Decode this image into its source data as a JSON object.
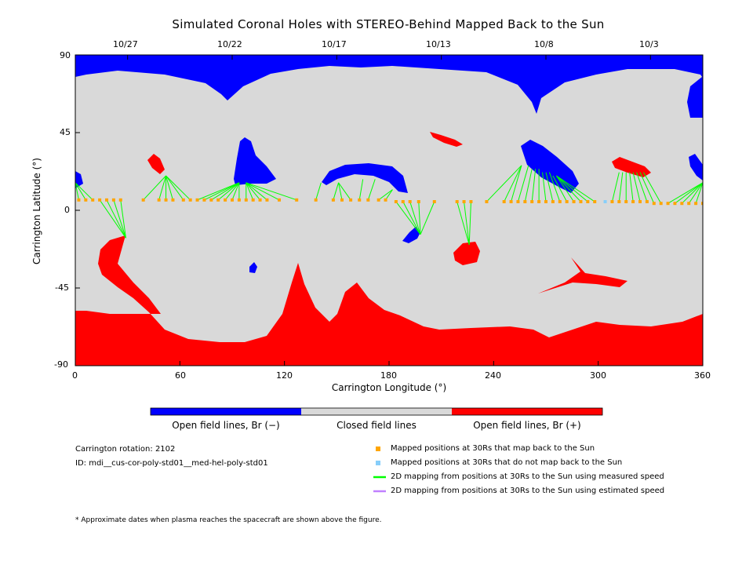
{
  "chart_data": {
    "type": "heatmap",
    "title": "Simulated Coronal Holes with STEREO-Behind Mapped Back to the Sun",
    "xlabel": "Carrington Longitude (°)",
    "ylabel": "Carrington Latitude (°)",
    "xlim": [
      0,
      360
    ],
    "ylim": [
      -90,
      90
    ],
    "x_ticks": [
      0,
      60,
      120,
      180,
      240,
      300,
      360
    ],
    "y_ticks": [
      90,
      45,
      0,
      -45,
      -90
    ],
    "top_axis_dates": [
      {
        "label": "10/27",
        "lon": 30
      },
      {
        "label": "10/22",
        "lon": 90
      },
      {
        "label": "10/17",
        "lon": 150
      },
      {
        "label": "10/13",
        "lon": 210
      },
      {
        "label": "10/8",
        "lon": 270
      },
      {
        "label": "10/3",
        "lon": 330
      }
    ],
    "colors": {
      "open_neg": "#0000ff",
      "closed": "#d9d9d9",
      "open_pos": "#ff0000",
      "mapped": "#ffa500",
      "unmapped": "#87cefa",
      "measured": "#00ff00",
      "estimated": "#c080ff"
    },
    "colorbar": [
      {
        "label": "Open field lines, Br (−)",
        "color": "#0000ff"
      },
      {
        "label": "Closed field lines",
        "color": "#d9d9d9"
      },
      {
        "label": "Open field lines, Br (+)",
        "color": "#ff0000"
      }
    ],
    "mapped_points_30Rs": [
      {
        "lon": 2,
        "lat": 6,
        "maps_to": [
          [
            0,
            16
          ]
        ]
      },
      {
        "lon": 6,
        "lat": 6,
        "maps_to": [
          [
            0,
            16
          ]
        ]
      },
      {
        "lon": 10,
        "lat": 6,
        "maps_to": [
          [
            0,
            16
          ]
        ]
      },
      {
        "lon": 14,
        "lat": 6,
        "maps_to": [
          [
            29,
            -16
          ]
        ]
      },
      {
        "lon": 18,
        "lat": 6,
        "maps_to": [
          [
            29,
            -16
          ]
        ]
      },
      {
        "lon": 22,
        "lat": 6,
        "maps_to": [
          [
            29,
            -16
          ]
        ]
      },
      {
        "lon": 26,
        "lat": 6,
        "maps_to": [
          [
            29,
            -16
          ]
        ]
      },
      {
        "lon": 39,
        "lat": 6,
        "maps_to": [
          [
            52,
            20
          ]
        ]
      },
      {
        "lon": 48,
        "lat": 6,
        "maps_to": [
          [
            52,
            20
          ]
        ]
      },
      {
        "lon": 52,
        "lat": 6,
        "maps_to": [
          [
            52,
            20
          ]
        ]
      },
      {
        "lon": 56,
        "lat": 6,
        "maps_to": [
          [
            52,
            20
          ]
        ]
      },
      {
        "lon": 62,
        "lat": 6,
        "maps_to": [
          [
            52,
            20
          ]
        ]
      },
      {
        "lon": 66,
        "lat": 6,
        "maps_to": [
          [
            52,
            20
          ]
        ]
      },
      {
        "lon": 70,
        "lat": 6,
        "maps_to": [
          [
            94,
            16
          ]
        ]
      },
      {
        "lon": 74,
        "lat": 6,
        "maps_to": [
          [
            94,
            16
          ]
        ]
      },
      {
        "lon": 78,
        "lat": 6,
        "maps_to": [
          [
            94,
            16
          ]
        ]
      },
      {
        "lon": 82,
        "lat": 6,
        "maps_to": [
          [
            94,
            16
          ]
        ]
      },
      {
        "lon": 86,
        "lat": 6,
        "maps_to": [
          [
            94,
            16
          ]
        ]
      },
      {
        "lon": 90,
        "lat": 6,
        "maps_to": [
          [
            94,
            16
          ]
        ]
      },
      {
        "lon": 94,
        "lat": 6,
        "maps_to": [
          [
            94,
            16
          ]
        ]
      },
      {
        "lon": 98,
        "lat": 6,
        "maps_to": [
          [
            98,
            16
          ]
        ]
      },
      {
        "lon": 102,
        "lat": 6,
        "maps_to": [
          [
            98,
            16
          ]
        ]
      },
      {
        "lon": 106,
        "lat": 6,
        "maps_to": [
          [
            98,
            16
          ]
        ]
      },
      {
        "lon": 110,
        "lat": 6,
        "maps_to": [
          [
            98,
            16
          ]
        ]
      },
      {
        "lon": 117,
        "lat": 6,
        "maps_to": [
          [
            98,
            16
          ]
        ]
      },
      {
        "lon": 127,
        "lat": 6,
        "maps_to": [
          [
            98,
            16
          ]
        ]
      },
      {
        "lon": 138,
        "lat": 6,
        "maps_to": [
          [
            141,
            16
          ]
        ]
      },
      {
        "lon": 148,
        "lat": 6,
        "maps_to": [
          [
            151,
            16
          ]
        ]
      },
      {
        "lon": 153,
        "lat": 6,
        "maps_to": [
          [
            151,
            16
          ]
        ]
      },
      {
        "lon": 158,
        "lat": 6,
        "maps_to": [
          [
            151,
            16
          ]
        ]
      },
      {
        "lon": 163,
        "lat": 6,
        "maps_to": [
          [
            165,
            18
          ]
        ]
      },
      {
        "lon": 168,
        "lat": 6,
        "maps_to": [
          [
            172,
            18
          ]
        ]
      },
      {
        "lon": 174,
        "lat": 6,
        "maps_to": [
          [
            182,
            12
          ]
        ]
      },
      {
        "lon": 178,
        "lat": 6,
        "maps_to": [
          [
            182,
            12
          ]
        ]
      },
      {
        "lon": 184,
        "lat": 5,
        "maps_to": [
          [
            198,
            -14
          ]
        ]
      },
      {
        "lon": 188,
        "lat": 5,
        "maps_to": [
          [
            198,
            -14
          ]
        ]
      },
      {
        "lon": 192,
        "lat": 5,
        "maps_to": [
          [
            198,
            -14
          ]
        ]
      },
      {
        "lon": 197,
        "lat": 5,
        "maps_to": [
          [
            198,
            -14
          ]
        ]
      },
      {
        "lon": 206,
        "lat": 5,
        "maps_to": [
          [
            198,
            -14
          ]
        ]
      },
      {
        "lon": 219,
        "lat": 5,
        "maps_to": [
          [
            226,
            -20
          ]
        ]
      },
      {
        "lon": 223,
        "lat": 5,
        "maps_to": [
          [
            226,
            -20
          ]
        ]
      },
      {
        "lon": 227,
        "lat": 5,
        "maps_to": [
          [
            226,
            -20
          ]
        ]
      },
      {
        "lon": 236,
        "lat": 5,
        "maps_to": [
          [
            256,
            26
          ]
        ]
      },
      {
        "lon": 246,
        "lat": 5,
        "maps_to": [
          [
            256,
            26
          ]
        ]
      },
      {
        "lon": 250,
        "lat": 5,
        "maps_to": [
          [
            256,
            26
          ]
        ]
      },
      {
        "lon": 254,
        "lat": 5,
        "maps_to": [
          [
            260,
            26
          ]
        ]
      },
      {
        "lon": 258,
        "lat": 5,
        "maps_to": [
          [
            262,
            24
          ]
        ]
      },
      {
        "lon": 262,
        "lat": 5,
        "maps_to": [
          [
            264,
            24
          ]
        ]
      },
      {
        "lon": 266,
        "lat": 5,
        "maps_to": [
          [
            266,
            24
          ]
        ]
      },
      {
        "lon": 270,
        "lat": 5,
        "maps_to": [
          [
            268,
            22
          ]
        ]
      },
      {
        "lon": 274,
        "lat": 5,
        "maps_to": [
          [
            270,
            22
          ]
        ]
      },
      {
        "lon": 278,
        "lat": 5,
        "maps_to": [
          [
            272,
            22
          ]
        ]
      },
      {
        "lon": 282,
        "lat": 5,
        "maps_to": [
          [
            274,
            20
          ]
        ]
      },
      {
        "lon": 286,
        "lat": 5,
        "maps_to": [
          [
            276,
            20
          ]
        ]
      },
      {
        "lon": 290,
        "lat": 5,
        "maps_to": [
          [
            276,
            20
          ]
        ]
      },
      {
        "lon": 294,
        "lat": 5,
        "maps_to": [
          [
            276,
            20
          ]
        ]
      },
      {
        "lon": 298,
        "lat": 5,
        "maps_to": [
          [
            276,
            20
          ]
        ]
      },
      {
        "lon": 308,
        "lat": 5,
        "maps_to": [
          [
            312,
            22
          ]
        ]
      },
      {
        "lon": 312,
        "lat": 5,
        "maps_to": [
          [
            314,
            22
          ]
        ]
      },
      {
        "lon": 316,
        "lat": 5,
        "maps_to": [
          [
            316,
            22
          ]
        ]
      },
      {
        "lon": 320,
        "lat": 5,
        "maps_to": [
          [
            318,
            22
          ]
        ]
      },
      {
        "lon": 324,
        "lat": 5,
        "maps_to": [
          [
            320,
            22
          ]
        ]
      },
      {
        "lon": 328,
        "lat": 5,
        "maps_to": [
          [
            322,
            22
          ]
        ]
      },
      {
        "lon": 332,
        "lat": 4,
        "maps_to": [
          [
            324,
            22
          ]
        ]
      },
      {
        "lon": 336,
        "lat": 4,
        "maps_to": [
          [
            326,
            22
          ]
        ]
      },
      {
        "lon": 340,
        "lat": 4,
        "maps_to": [
          [
            360,
            16
          ]
        ]
      },
      {
        "lon": 344,
        "lat": 4,
        "maps_to": [
          [
            360,
            16
          ]
        ]
      },
      {
        "lon": 348,
        "lat": 4,
        "maps_to": [
          [
            360,
            16
          ]
        ]
      },
      {
        "lon": 352,
        "lat": 4,
        "maps_to": [
          [
            360,
            16
          ]
        ]
      },
      {
        "lon": 356,
        "lat": 4,
        "maps_to": [
          [
            360,
            16
          ]
        ]
      },
      {
        "lon": 360,
        "lat": 4,
        "maps_to": [
          [
            360,
            16
          ]
        ]
      }
    ],
    "unmapped_points_30Rs": [
      {
        "lon": 304,
        "lat": 5
      }
    ]
  },
  "info": {
    "rotation": "Carrington rotation: 2102",
    "id": "ID: mdi__cus-cor-poly-std01__med-hel-poly-std01"
  },
  "legend": [
    {
      "label": "Mapped positions at 30Rs that map back to the Sun",
      "kind": "square",
      "color": "#ffa500"
    },
    {
      "label": "Mapped positions at 30Rs that do not map back to the Sun",
      "kind": "square",
      "color": "#87cefa"
    },
    {
      "label": "2D mapping from positions at 30Rs to the Sun using measured speed",
      "kind": "line",
      "color": "#00ff00"
    },
    {
      "label": "2D mapping from positions at 30Rs to the Sun using estimated speed",
      "kind": "line",
      "color": "#c080ff"
    }
  ],
  "footnote": "* Approximate dates when plasma reaches the spacecraft are shown above the figure."
}
